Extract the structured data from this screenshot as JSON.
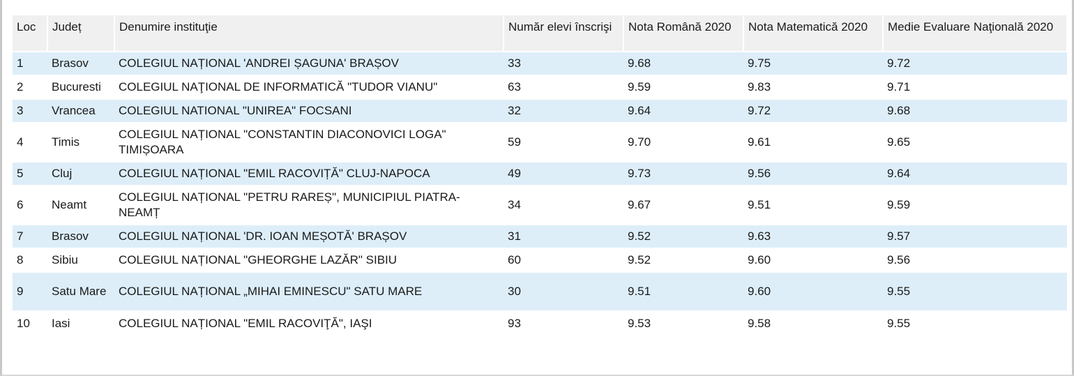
{
  "table": {
    "headers": {
      "loc": "Loc",
      "judet": "Județ",
      "denumire": "Denumire instituţie",
      "elevi": "Număr elevi înscrişi",
      "romana": "Nota Română 2020",
      "matematica": "Nota Matematică 2020",
      "medie": "Medie Evaluare Naţională 2020"
    },
    "rows": [
      {
        "loc": "1",
        "judet": "Brasov",
        "denumire": "COLEGIUL NAȚIONAL 'ANDREI ȘAGUNA' BRAȘOV",
        "elevi": "33",
        "romana": "9.68",
        "matematica": "9.75",
        "medie": "9.72"
      },
      {
        "loc": "2",
        "judet": "Bucuresti",
        "denumire": "COLEGIUL NAŢIONAL DE INFORMATICĂ \"TUDOR VIANU\"",
        "elevi": "63",
        "romana": "9.59",
        "matematica": "9.83",
        "medie": "9.71"
      },
      {
        "loc": "3",
        "judet": "Vrancea",
        "denumire": "COLEGIUL NATIONAL \"UNIREA\" FOCSANI",
        "elevi": "32",
        "romana": "9.64",
        "matematica": "9.72",
        "medie": "9.68"
      },
      {
        "loc": "4",
        "judet": "Timis",
        "denumire": "COLEGIUL NAȚIONAL \"CONSTANTIN DIACONOVICI LOGA\" TIMIȘOARA",
        "elevi": "59",
        "romana": "9.70",
        "matematica": "9.61",
        "medie": "9.65"
      },
      {
        "loc": "5",
        "judet": "Cluj",
        "denumire": "COLEGIUL NAȚIONAL \"EMIL RACOVIȚĂ\" CLUJ-NAPOCA",
        "elevi": "49",
        "romana": "9.73",
        "matematica": "9.56",
        "medie": "9.64"
      },
      {
        "loc": "6",
        "judet": "Neamt",
        "denumire": "COLEGIUL NAȚIONAL \"PETRU RAREȘ\", MUNICIPIUL PIATRA-NEAMȚ",
        "elevi": "34",
        "romana": "9.67",
        "matematica": "9.51",
        "medie": "9.59"
      },
      {
        "loc": "7",
        "judet": "Brasov",
        "denumire": "COLEGIUL NAȚIONAL 'DR. IOAN MEȘOTĂ' BRAȘOV",
        "elevi": "31",
        "romana": "9.52",
        "matematica": "9.63",
        "medie": "9.57"
      },
      {
        "loc": "8",
        "judet": "Sibiu",
        "denumire": "COLEGIUL NAȚIONAL \"GHEORGHE LAZĂR\" SIBIU",
        "elevi": "60",
        "romana": "9.52",
        "matematica": "9.60",
        "medie": "9.56"
      },
      {
        "loc": "9",
        "judet": "Satu Mare",
        "denumire": "COLEGIUL NAȚIONAL „MIHAI EMINESCU\" SATU MARE",
        "elevi": "30",
        "romana": "9.51",
        "matematica": "9.60",
        "medie": "9.55"
      },
      {
        "loc": "10",
        "judet": "Iasi",
        "denumire": "COLEGIUL NAȚIONAL \"EMIL RACOVIŢĂ\", IAŞI",
        "elevi": "93",
        "romana": "9.53",
        "matematica": "9.58",
        "medie": "9.55"
      }
    ]
  }
}
